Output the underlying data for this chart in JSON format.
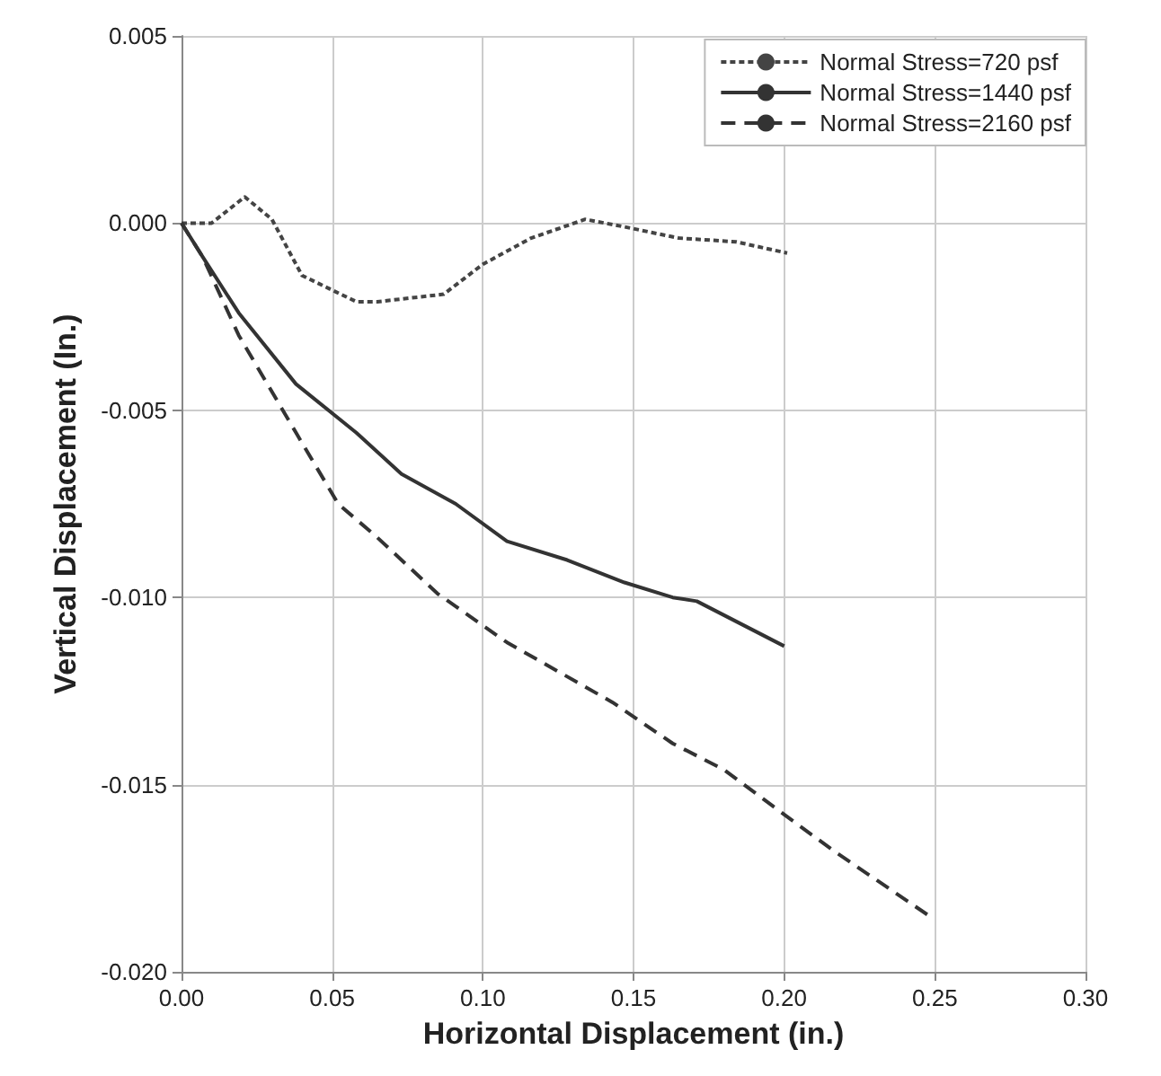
{
  "chart_data": {
    "type": "line",
    "xlabel": "Horizontal Displacement (in.)",
    "ylabel": "Vertical Displacement (In.)",
    "xlim": [
      0,
      0.3
    ],
    "ylim": [
      -0.02,
      0.005
    ],
    "xticks": [
      {
        "value": 0,
        "label": "0.00"
      },
      {
        "value": 0.05,
        "label": "0.05"
      },
      {
        "value": 0.1,
        "label": "0.10"
      },
      {
        "value": 0.15,
        "label": "0.15"
      },
      {
        "value": 0.2,
        "label": "0.20"
      },
      {
        "value": 0.25,
        "label": "0.25"
      },
      {
        "value": 0.3,
        "label": "0.30"
      }
    ],
    "yticks": [
      {
        "value": -0.02,
        "label": "-0.020"
      },
      {
        "value": -0.015,
        "label": "-0.015"
      },
      {
        "value": -0.01,
        "label": "-0.010"
      },
      {
        "value": -0.005,
        "label": "-0.005"
      },
      {
        "value": 0,
        "label": "0.000"
      },
      {
        "value": 0.005,
        "label": "0.005"
      }
    ],
    "grid": true,
    "legend": "top right",
    "marker": "none",
    "series": [
      {
        "name": "Normal Stress=720 psf",
        "color": "#444444",
        "line_style": "dotted",
        "x": [
          0,
          0.01,
          0.021,
          0.03,
          0.04,
          0.058,
          0.065,
          0.087,
          0.1,
          0.116,
          0.134,
          0.147,
          0.165,
          0.184,
          0.201
        ],
        "values": [
          0,
          0,
          0.0007,
          0.0001,
          -0.0014,
          -0.0021,
          -0.0021,
          -0.0019,
          -0.0011,
          -0.0004,
          0.0001,
          -0.0001,
          -0.0004,
          -0.0005,
          -0.0008
        ]
      },
      {
        "name": "Normal Stress=1440 psf",
        "color": "#333333",
        "line_style": "solid",
        "x": [
          0,
          0.007,
          0.019,
          0.038,
          0.058,
          0.073,
          0.091,
          0.108,
          0.128,
          0.147,
          0.163,
          0.171,
          0.2
        ],
        "values": [
          0,
          -0.0009,
          -0.0024,
          -0.0043,
          -0.0056,
          -0.0067,
          -0.0075,
          -0.0085,
          -0.009,
          -0.0096,
          -0.01,
          -0.0101,
          -0.0113
        ]
      },
      {
        "name": "Normal Stress=2160 psf",
        "color": "#333333",
        "line_style": "dashed",
        "x": [
          0,
          0.007,
          0.019,
          0.038,
          0.052,
          0.065,
          0.085,
          0.108,
          0.143,
          0.163,
          0.18,
          0.2,
          0.217,
          0.248
        ],
        "values": [
          0,
          -0.0009,
          -0.003,
          -0.0056,
          -0.0075,
          -0.0084,
          -0.0099,
          -0.0112,
          -0.0128,
          -0.0139,
          -0.0146,
          -0.0158,
          -0.0168,
          -0.0185
        ]
      }
    ]
  }
}
